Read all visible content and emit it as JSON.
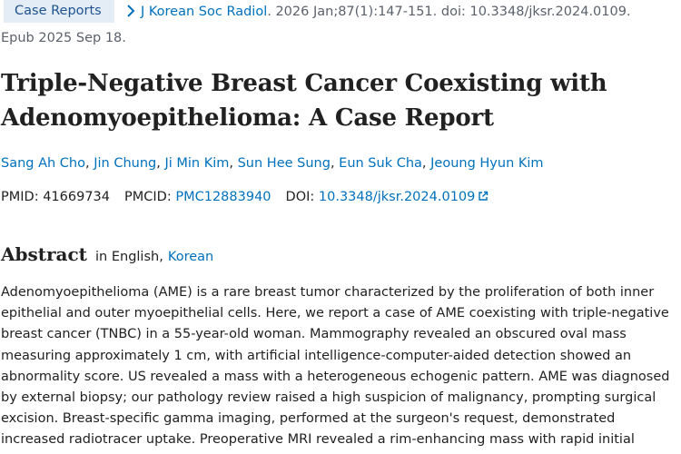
{
  "citation": {
    "publication_type": "Case Reports",
    "journal": "J Korean Soc Radiol",
    "details": ". 2026 Jan;87(1):147-151. doi: 10.3348/jksr.2024.0109.",
    "epub": "Epub 2025 Sep 18."
  },
  "article": {
    "title_line1": "Triple-Negative Breast Cancer Coexisting with",
    "title_line2": "Adenomyoepithelioma: A Case Report"
  },
  "authors": [
    "Sang Ah Cho",
    "Jin Chung",
    "Ji Min Kim",
    "Sun Hee Sung",
    "Eun Suk Cha",
    "Jeoung Hyun Kim"
  ],
  "identifiers": {
    "pmid_label": "PMID:",
    "pmid": "41669734",
    "pmcid_label": "PMCID:",
    "pmcid": "PMC12883940",
    "doi_label": "DOI:",
    "doi": "10.3348/jksr.2024.0109"
  },
  "abstract": {
    "heading": "Abstract",
    "lang_prefix": "in English,",
    "lang_alt": "Korean",
    "text": "Adenomyoepithelioma (AME) is a rare breast tumor characterized by the proliferation of both inner epithelial and outer myoepithelial cells. Here, we report a case of AME coexisting with triple-negative breast cancer (TNBC) in a 55-year-old woman. Mammography revealed an obscured oval mass measuring approximately 1 cm, with artificial intelligence-computer-aided detection showed an abnormality score. US revealed a mass with a heterogeneous echogenic pattern. AME was diagnosed by external biopsy; our pathology review raised a high suspicion of malignancy, prompting surgical excision. Breast-specific gamma imaging, performed at the surgeon's request, demonstrated increased radiotracer uptake. Preoperative MRI revealed a rim-enhancing mass with rapid initial"
  },
  "colors": {
    "link": "#0071bc",
    "badge_bg": "#e4ecf5",
    "text": "#212121",
    "muted": "#5b616b"
  }
}
